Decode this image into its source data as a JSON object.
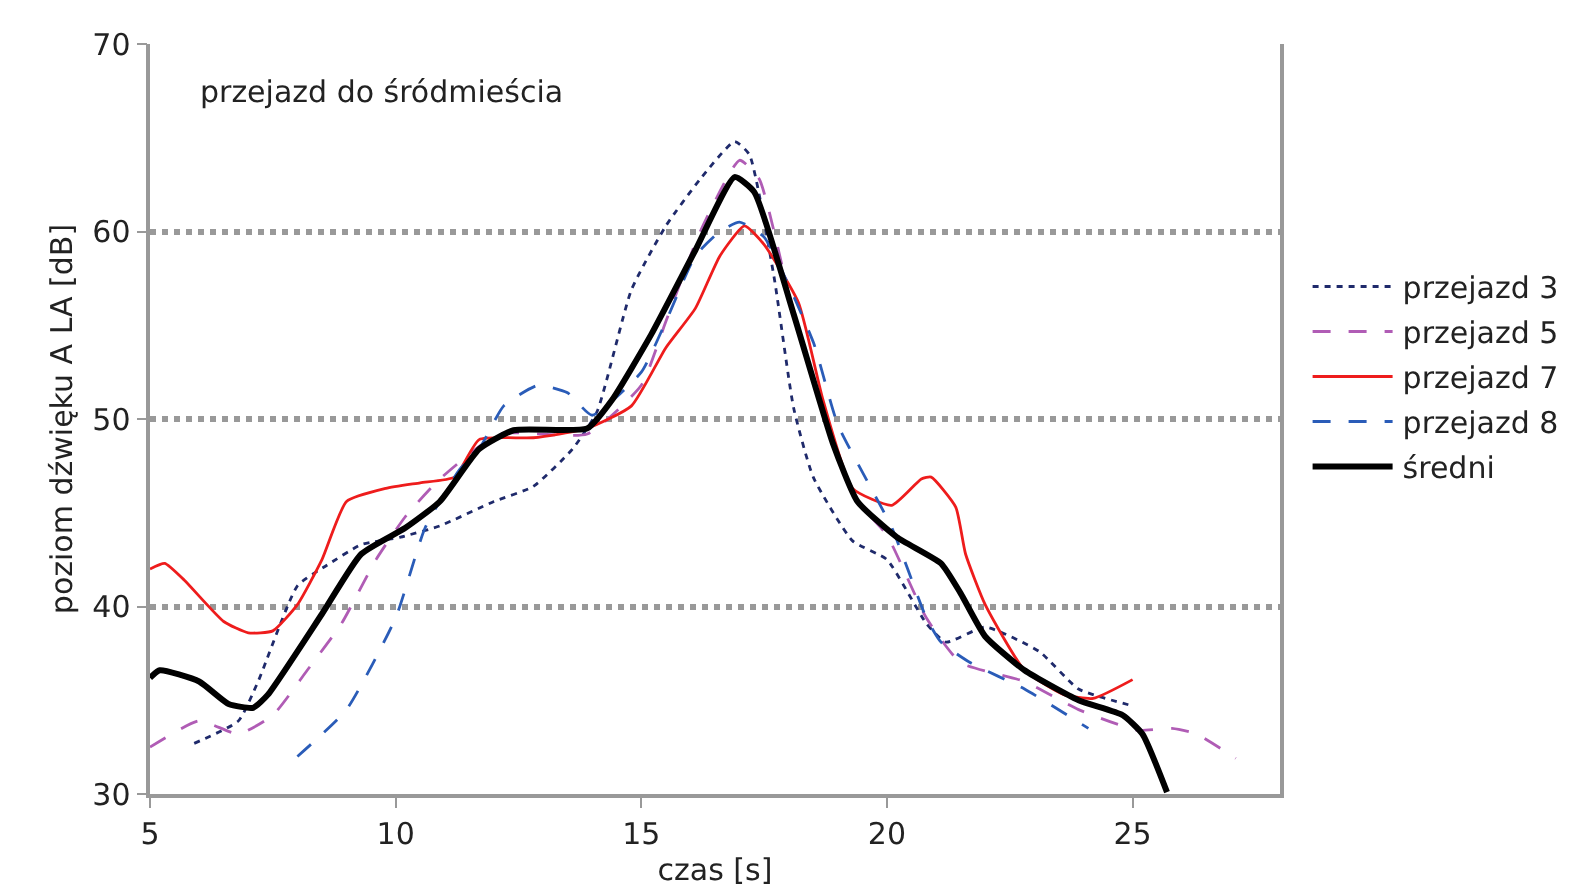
{
  "chart_data": {
    "type": "line",
    "xlabel": "czas [s]",
    "ylabel": "poziom dźwięku A LA [dB]",
    "annotations": [
      "przejazd do śródmieścia"
    ],
    "xlim": [
      5,
      28
    ],
    "xticks": [
      5,
      10,
      15,
      20,
      25
    ],
    "ylim": [
      30,
      70
    ],
    "yticks": [
      30,
      40,
      50,
      60,
      70
    ],
    "grid": "y",
    "legend": "right",
    "marker": "none",
    "series": [
      {
        "name": "przejazd 3",
        "color": "#1f2a6b",
        "line_style": "dotted",
        "x": [
          5.9,
          6.8,
          7.2,
          8.0,
          8.6,
          9.3,
          10.1,
          10.9,
          12.0,
          12.8,
          13.6,
          14.1,
          14.8,
          15.5,
          16.2,
          16.9,
          17.2,
          17.7,
          18.1,
          18.5,
          19.3,
          20.0,
          20.8,
          21.2,
          22.0,
          23.1,
          23.9,
          25.0
        ],
        "values": [
          32.7,
          33.9,
          36.0,
          41.1,
          42.2,
          43.3,
          43.7,
          44.3,
          45.6,
          46.4,
          48.4,
          50.4,
          56.9,
          60.3,
          62.8,
          64.8,
          64.1,
          57.6,
          50.6,
          46.9,
          43.5,
          42.5,
          39.1,
          38.1,
          38.9,
          37.6,
          35.6,
          34.7
        ]
      },
      {
        "name": "przejazd 5",
        "color": "#b05cb5",
        "line_style": "dashed",
        "x": [
          5,
          6.0,
          6.8,
          7.5,
          8.2,
          8.9,
          9.6,
          10.2,
          10.9,
          12.1,
          13.9,
          15.0,
          15.5,
          16.2,
          17.0,
          17.4,
          18.1,
          18.9,
          19.4,
          20.0,
          20.8,
          21.5,
          22.8,
          23.9,
          25.1,
          25.8,
          26.3,
          27.1
        ],
        "values": [
          32.5,
          33.9,
          33.2,
          34.2,
          36.6,
          39.1,
          42.5,
          44.8,
          46.8,
          49.2,
          49.2,
          51.8,
          55.2,
          60.0,
          63.8,
          62.8,
          55.6,
          48.7,
          45.6,
          43.8,
          39.4,
          37.0,
          36.0,
          34.5,
          33.4,
          33.5,
          33.2,
          31.9
        ]
      },
      {
        "name": "przejazd 7",
        "color": "#ee1c1c",
        "line_style": "solid",
        "x": [
          5,
          5.3,
          5.7,
          6.5,
          7.0,
          7.5,
          8.0,
          8.5,
          9.0,
          9.8,
          10.5,
          11.2,
          11.7,
          12.8,
          13.9,
          14.8,
          15.5,
          16.1,
          16.6,
          17.1,
          17.5,
          18.2,
          18.7,
          19.3,
          20.1,
          20.7,
          20.9,
          21.4,
          21.6,
          22.0,
          22.8,
          23.6,
          24.2,
          25.0
        ],
        "values": [
          42.0,
          42.3,
          41.4,
          39.2,
          38.6,
          38.7,
          40.1,
          42.5,
          45.6,
          46.3,
          46.6,
          46.9,
          48.9,
          49.0,
          49.5,
          50.7,
          53.8,
          55.9,
          58.7,
          60.3,
          59.3,
          56.2,
          51.0,
          46.3,
          45.4,
          46.8,
          46.9,
          45.3,
          42.8,
          40.1,
          36.6,
          35.3,
          35.1,
          36.1
        ]
      },
      {
        "name": "przejazd 8",
        "color": "#2a5cb8",
        "line_style": "dashed",
        "x": [
          8.0,
          9.0,
          10.0,
          10.6,
          11.3,
          11.7,
          12.2,
          12.9,
          13.5,
          14.0,
          15.0,
          15.5,
          16.1,
          16.6,
          17.0,
          17.5,
          18.5,
          19.0,
          20.1,
          20.8,
          21.1,
          21.7,
          22.8,
          24.1
        ],
        "values": [
          32.0,
          34.5,
          39.4,
          44.2,
          47.3,
          48.4,
          50.7,
          51.8,
          51.4,
          50.2,
          52.5,
          55.2,
          58.7,
          60.0,
          60.5,
          59.7,
          54.1,
          49.7,
          44.2,
          39.4,
          38.1,
          37.0,
          35.6,
          33.5
        ]
      },
      {
        "name": "średni",
        "color": "#000000",
        "line_style": "solid",
        "x": [
          5,
          5.2,
          6.0,
          6.6,
          7.1,
          7.4,
          8.5,
          9.3,
          10.2,
          10.9,
          11.7,
          12.4,
          13.9,
          14.4,
          15.2,
          16.1,
          16.9,
          17.3,
          18.1,
          18.9,
          19.4,
          20.2,
          21.1,
          21.5,
          22.0,
          22.8,
          23.9,
          24.8,
          25.2,
          25.7
        ],
        "values": [
          36.2,
          36.6,
          36.0,
          34.8,
          34.6,
          35.3,
          39.6,
          42.8,
          44.2,
          45.6,
          48.4,
          49.4,
          49.5,
          51.0,
          54.5,
          59.0,
          62.9,
          62.1,
          55.6,
          48.7,
          45.6,
          43.7,
          42.3,
          40.7,
          38.4,
          36.6,
          35.0,
          34.2,
          33.2,
          30.1
        ]
      }
    ]
  }
}
